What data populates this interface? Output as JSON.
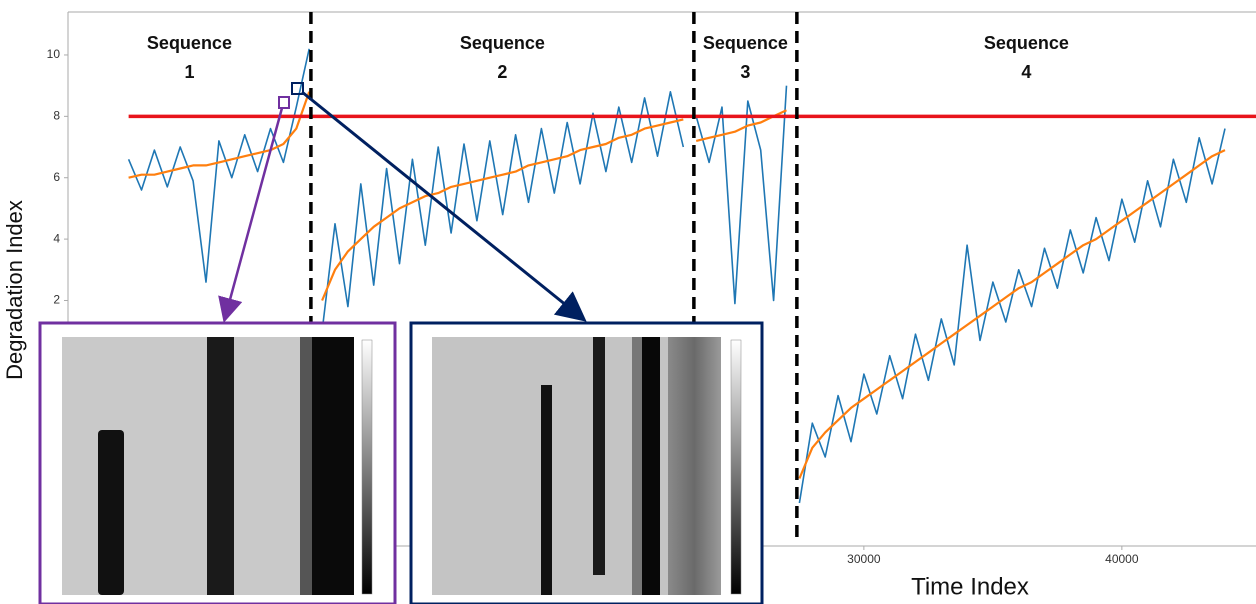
{
  "chart_data": {
    "type": "line",
    "xlabel": "Time Index",
    "ylabel": "Degradation Index",
    "xlim": [
      -850,
      45200
    ],
    "ylim": [
      -6,
      11.4
    ],
    "xticks": [
      30000,
      40000
    ],
    "yticks": [
      2,
      4,
      6,
      8,
      10
    ],
    "raw_color": "#1f77b4",
    "smoothed_color": "#ff7f0e",
    "threshold": {
      "value": 8,
      "color": "#e8141b"
    },
    "boundaries": [
      8566,
      23411,
      27403
    ],
    "annotations": [
      {
        "lines": [
          "Sequence",
          "1"
        ]
      },
      {
        "lines": [
          "Sequence",
          "2"
        ]
      },
      {
        "lines": [
          "Sequence",
          "3"
        ]
      },
      {
        "lines": [
          "Sequence",
          "4"
        ]
      }
    ],
    "sequences": [
      {
        "x": [
          1500,
          2000,
          2500,
          3000,
          3500,
          4000,
          4500,
          5000,
          5500,
          6000,
          6500,
          7000,
          7500,
          8000,
          8500
        ],
        "raw": [
          6.6,
          5.6,
          6.9,
          5.7,
          7.0,
          5.9,
          2.6,
          7.2,
          6.0,
          7.4,
          6.2,
          7.6,
          6.5,
          8.3,
          10.2
        ],
        "smoothed": [
          6.0,
          6.1,
          6.1,
          6.2,
          6.3,
          6.4,
          6.4,
          6.5,
          6.6,
          6.7,
          6.8,
          6.9,
          7.1,
          7.6,
          8.8
        ]
      },
      {
        "x": [
          9000,
          9500,
          10000,
          10500,
          11000,
          11500,
          12000,
          12500,
          13000,
          13500,
          14000,
          14500,
          15000,
          15500,
          16000,
          16500,
          17000,
          17500,
          18000,
          18500,
          19000,
          19500,
          20000,
          20500,
          21000,
          21500,
          22000,
          22500,
          23000
        ],
        "raw": [
          1.0,
          4.5,
          1.8,
          5.8,
          2.5,
          6.3,
          3.2,
          6.6,
          3.8,
          7.0,
          4.2,
          7.1,
          4.6,
          7.2,
          4.8,
          7.4,
          5.2,
          7.6,
          5.5,
          7.8,
          5.8,
          8.1,
          6.2,
          8.3,
          6.5,
          8.6,
          6.7,
          8.8,
          7.0
        ],
        "smoothed": [
          2.0,
          3.0,
          3.6,
          4.0,
          4.4,
          4.7,
          5.0,
          5.2,
          5.4,
          5.5,
          5.7,
          5.8,
          5.9,
          6.0,
          6.1,
          6.2,
          6.4,
          6.5,
          6.6,
          6.7,
          6.9,
          7.0,
          7.1,
          7.3,
          7.4,
          7.6,
          7.7,
          7.8,
          7.9
        ]
      },
      {
        "x": [
          23500,
          24000,
          24500,
          25000,
          25500,
          26000,
          26500,
          27000
        ],
        "raw": [
          8.0,
          6.5,
          8.3,
          1.9,
          8.5,
          6.9,
          2.0,
          9.0
        ],
        "smoothed": [
          7.2,
          7.3,
          7.4,
          7.5,
          7.7,
          7.8,
          8.0,
          8.2
        ]
      },
      {
        "x": [
          27500,
          28000,
          28500,
          29000,
          29500,
          30000,
          30500,
          31000,
          31500,
          32000,
          32500,
          33000,
          33500,
          34000,
          34500,
          35000,
          35500,
          36000,
          36500,
          37000,
          37500,
          38000,
          38500,
          39000,
          39500,
          40000,
          40500,
          41000,
          41500,
          42000,
          42500,
          43000,
          43500,
          44000
        ],
        "raw": [
          -4.6,
          -2.0,
          -3.1,
          -1.1,
          -2.6,
          -0.4,
          -1.7,
          0.2,
          -1.2,
          0.9,
          -0.6,
          1.4,
          -0.1,
          3.8,
          0.7,
          2.6,
          1.3,
          3.0,
          1.8,
          3.7,
          2.4,
          4.3,
          2.9,
          4.7,
          3.3,
          5.3,
          3.9,
          5.9,
          4.4,
          6.6,
          5.2,
          7.3,
          5.8,
          7.6
        ],
        "smoothed": [
          -3.8,
          -2.8,
          -2.3,
          -1.9,
          -1.5,
          -1.2,
          -0.9,
          -0.6,
          -0.3,
          0.0,
          0.3,
          0.6,
          0.9,
          1.2,
          1.5,
          1.8,
          2.1,
          2.4,
          2.6,
          2.9,
          3.2,
          3.5,
          3.8,
          4.0,
          4.3,
          4.6,
          4.9,
          5.2,
          5.5,
          5.8,
          6.1,
          6.4,
          6.7,
          6.9
        ]
      }
    ]
  }
}
